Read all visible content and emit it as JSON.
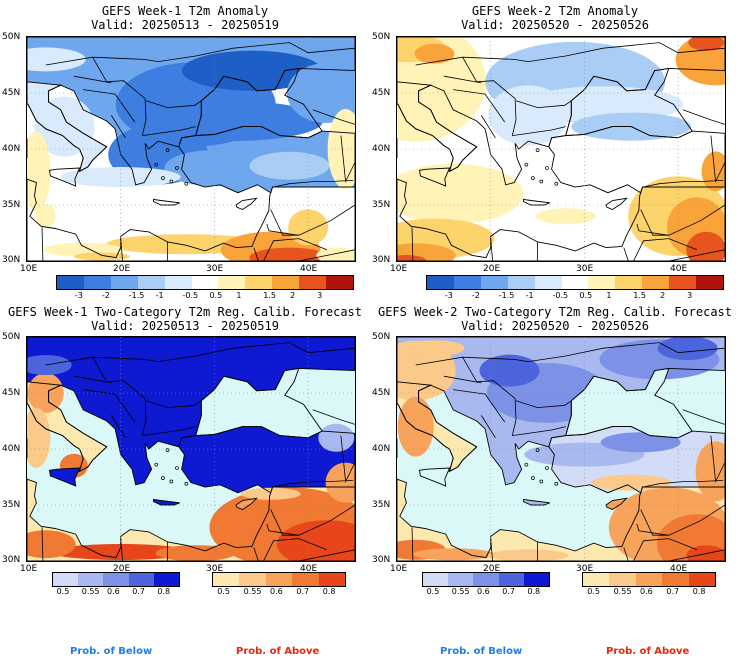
{
  "panels": [
    {
      "title": "GEFS Week-1 T2m Anomaly",
      "valid": "Valid: 20250513 - 20250519"
    },
    {
      "title": "GEFS Week-2 T2m Anomaly",
      "valid": "Valid: 20250520 - 20250526"
    },
    {
      "title": "GEFS Week-1 Two-Category T2m Reg. Calib. Forecast",
      "valid": "Valid: 20250513 - 20250519"
    },
    {
      "title": "GEFS Week-2 Two-Category T2m Reg. Calib. Forecast",
      "valid": "Valid: 20250520 - 20250526"
    }
  ],
  "axes": {
    "lat_labels": [
      "50N",
      "45N",
      "40N",
      "35N",
      "30N"
    ],
    "lon_labels": [
      "10E",
      "20E",
      "30E",
      "40E"
    ]
  },
  "anomaly_colorbar": {
    "labels": [
      "-3",
      "-2",
      "-1.5",
      "-1",
      "-0.5",
      "0.5",
      "1",
      "1.5",
      "2",
      "3"
    ],
    "colors": [
      "#1d5fc7",
      "#3d7ee0",
      "#6ea7ee",
      "#a9cdf4",
      "#d8eafb",
      "#ffffff",
      "#fff3b8",
      "#fdd36b",
      "#f9a43a",
      "#e8541d",
      "#b0120c"
    ]
  },
  "prob_colorbar": {
    "below_labels": [
      "0.5",
      "0.55",
      "0.6",
      "0.7",
      "0.8"
    ],
    "above_labels": [
      "0.5",
      "0.55",
      "0.6",
      "0.7",
      "0.8"
    ],
    "below_colors": [
      "#d2dcf7",
      "#a9b9ef",
      "#7d92e6",
      "#4c64dc",
      "#0d1ad1"
    ],
    "above_colors": [
      "#fde8b0",
      "#fbc98a",
      "#f7a35c",
      "#f07a33",
      "#e6461a"
    ]
  },
  "legend": {
    "below": "Prob. of Below",
    "above": "Prob. of Above",
    "below_color": "#1e7ee8",
    "above_color": "#e8280c"
  },
  "chart_data": [
    {
      "type": "heatmap",
      "title": "GEFS Week-1 T2m Anomaly",
      "subtitle": "Valid: 20250513 - 20250519",
      "xlim": [
        10,
        45
      ],
      "ylim": [
        30,
        50
      ],
      "units_scale": [
        -3,
        -2,
        -1.5,
        -1,
        -0.5,
        0.5,
        1,
        1.5,
        2,
        3
      ],
      "pattern": "cold anomaly (-1 to -2.5) over Balkans, Black Sea, Turkey; warm (+1 to +2.5) over Egypt/Levant"
    },
    {
      "type": "heatmap",
      "title": "GEFS Week-2 T2m Anomaly",
      "subtitle": "Valid: 20250520 - 20250526",
      "xlim": [
        10,
        45
      ],
      "ylim": [
        30,
        50
      ],
      "units_scale": [
        -3,
        -2,
        -1.5,
        -1,
        -0.5,
        0.5,
        1,
        1.5,
        2,
        3
      ],
      "pattern": "weak cold (-0.5 to -1.5) over Black Sea region; warm (+0.5 to +2.5) in west, Libya and Middle East"
    },
    {
      "type": "heatmap",
      "title": "GEFS Week-1 Two-Category T2m Reg. Calib. Forecast",
      "subtitle": "Valid: 20250513 - 20250519",
      "xlim": [
        10,
        45
      ],
      "ylim": [
        30,
        50
      ],
      "categories": [
        "Prob. of Below",
        "Prob. of Above"
      ],
      "pattern": "probability of below >0.8 over Balkans, Black Sea, Turkey; above 0.6-0.8 over N Africa and Middle East"
    },
    {
      "type": "heatmap",
      "title": "GEFS Week-2 Two-Category T2m Reg. Calib. Forecast",
      "subtitle": "Valid: 20250520 - 20250526",
      "xlim": [
        10,
        45
      ],
      "ylim": [
        30,
        50
      ],
      "categories": [
        "Prob. of Below",
        "Prob. of Above"
      ],
      "pattern": "probability of below 0.55-0.7 over E Europe/Black Sea; above 0.55-0.8 over W Mediterranean and Middle East"
    }
  ]
}
